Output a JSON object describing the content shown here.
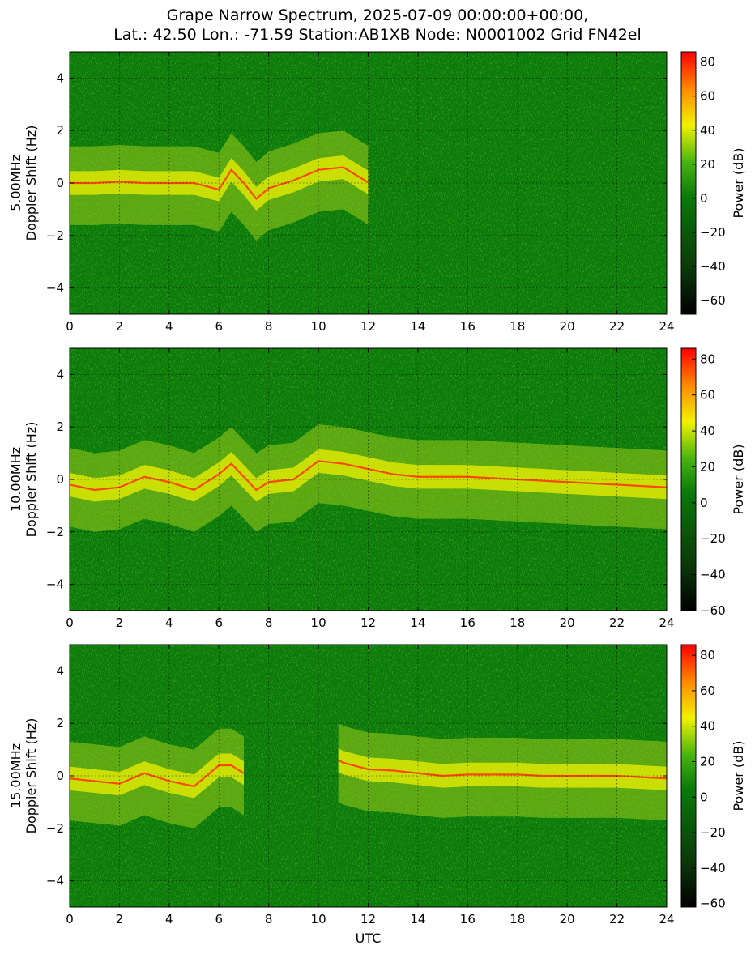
{
  "title": {
    "line1": "Grape Narrow Spectrum, 2025-07-09 00:00:00+00:00,",
    "line2": "Lat.: 42.50 Lon.: -71.59 Station:AB1XB Node: N0001002 Grid FN42el"
  },
  "colors": {
    "background_field": "#0a7a0a",
    "colormap": [
      "#000000",
      "#0b3a0b",
      "#0a7a0a",
      "#49b40f",
      "#f2f200",
      "#ff8800",
      "#ff0000"
    ]
  },
  "chart_data": [
    {
      "type": "heatmap",
      "panel": "5.00MHz",
      "ylabel": "5.00MHz\nDoppler Shift (Hz)",
      "ylabel_lines": [
        "5.00MHz",
        "Doppler Shift (Hz)"
      ],
      "xlabel": "",
      "xlim": [
        0,
        24
      ],
      "ylim": [
        -5,
        5
      ],
      "x_ticks": [
        "0",
        "2",
        "4",
        "6",
        "8",
        "10",
        "12",
        "14",
        "16",
        "18",
        "20",
        "22",
        "24"
      ],
      "y_ticks": [
        "4",
        "2",
        "0",
        "−2",
        "−4"
      ],
      "grid": true,
      "colorbar": {
        "label": "Power (dB)",
        "range": [
          -68,
          86
        ],
        "ticks": [
          "80",
          "60",
          "40",
          "20",
          "0",
          "−20",
          "−40",
          "−60"
        ]
      },
      "carrier_trace": [
        [
          0,
          0
        ],
        [
          1,
          0
        ],
        [
          2,
          0.05
        ],
        [
          3,
          0
        ],
        [
          4,
          0
        ],
        [
          5,
          0
        ],
        [
          6,
          -0.25
        ],
        [
          6.5,
          0.5
        ],
        [
          7,
          0
        ],
        [
          7.5,
          -0.6
        ],
        [
          8,
          -0.2
        ],
        [
          9,
          0.1
        ],
        [
          10,
          0.5
        ],
        [
          11,
          0.6
        ],
        [
          12,
          0.02
        ]
      ],
      "notes_visible": "strong signal 0–12 UTC, weak after"
    },
    {
      "type": "heatmap",
      "panel": "10.00MHz",
      "ylabel": "10.00MHz\nDoppler Shift (Hz)",
      "ylabel_lines": [
        "10.00MHz",
        "Doppler Shift (Hz)"
      ],
      "xlabel": "",
      "xlim": [
        0,
        24
      ],
      "ylim": [
        -5,
        5
      ],
      "x_ticks": [
        "0",
        "2",
        "4",
        "6",
        "8",
        "10",
        "12",
        "14",
        "16",
        "18",
        "20",
        "22",
        "24"
      ],
      "y_ticks": [
        "4",
        "2",
        "0",
        "−2",
        "−4"
      ],
      "grid": true,
      "colorbar": {
        "label": "Power (dB)",
        "range": [
          -60,
          86
        ],
        "ticks": [
          "80",
          "60",
          "40",
          "20",
          "0",
          "−20",
          "−40",
          "−60"
        ]
      },
      "carrier_trace": [
        [
          0,
          -0.2
        ],
        [
          1,
          -0.4
        ],
        [
          2,
          -0.3
        ],
        [
          3,
          0.1
        ],
        [
          4,
          -0.1
        ],
        [
          5,
          -0.4
        ],
        [
          6,
          0.2
        ],
        [
          6.5,
          0.6
        ],
        [
          7,
          0.1
        ],
        [
          7.5,
          -0.4
        ],
        [
          8,
          -0.1
        ],
        [
          9,
          0
        ],
        [
          10,
          0.7
        ],
        [
          11,
          0.6
        ],
        [
          12,
          0.4
        ],
        [
          13,
          0.2
        ],
        [
          14,
          0.1
        ],
        [
          16,
          0.1
        ],
        [
          18,
          0
        ],
        [
          20,
          -0.1
        ],
        [
          22,
          -0.2
        ],
        [
          24,
          -0.3
        ]
      ],
      "notes_visible": "signal present across full 0–24 UTC"
    },
    {
      "type": "heatmap",
      "panel": "15.00MHz",
      "ylabel": "15.00MHz\nDoppler Shift (Hz)",
      "ylabel_lines": [
        "15.00MHz",
        "Doppler Shift (Hz)"
      ],
      "xlabel": "UTC",
      "xlim": [
        0,
        24
      ],
      "ylim": [
        -5,
        5
      ],
      "x_ticks": [
        "0",
        "2",
        "4",
        "6",
        "8",
        "10",
        "12",
        "14",
        "16",
        "18",
        "20",
        "22",
        "24"
      ],
      "y_ticks": [
        "4",
        "2",
        "0",
        "−2",
        "−4"
      ],
      "grid": true,
      "colorbar": {
        "label": "Power (dB)",
        "range": [
          -62,
          86
        ],
        "ticks": [
          "80",
          "60",
          "40",
          "20",
          "0",
          "−20",
          "−40",
          "−60"
        ]
      },
      "carrier_trace": [
        [
          0,
          -0.1
        ],
        [
          1,
          -0.2
        ],
        [
          2,
          -0.3
        ],
        [
          3,
          0.1
        ],
        [
          4,
          -0.2
        ],
        [
          5,
          -0.4
        ],
        [
          6,
          0.4
        ],
        [
          6.5,
          0.4
        ],
        [
          7,
          0.1
        ],
        [
          10.8,
          0.6
        ],
        [
          11,
          0.5
        ],
        [
          12,
          0.25
        ],
        [
          13,
          0.2
        ],
        [
          14,
          0.1
        ],
        [
          15,
          0
        ],
        [
          16,
          0.05
        ],
        [
          18,
          0.05
        ],
        [
          19,
          0
        ],
        [
          20,
          0
        ],
        [
          22,
          0
        ],
        [
          24,
          -0.1
        ]
      ],
      "notes_visible": "gap in signal ~7–10.5 UTC"
    }
  ]
}
